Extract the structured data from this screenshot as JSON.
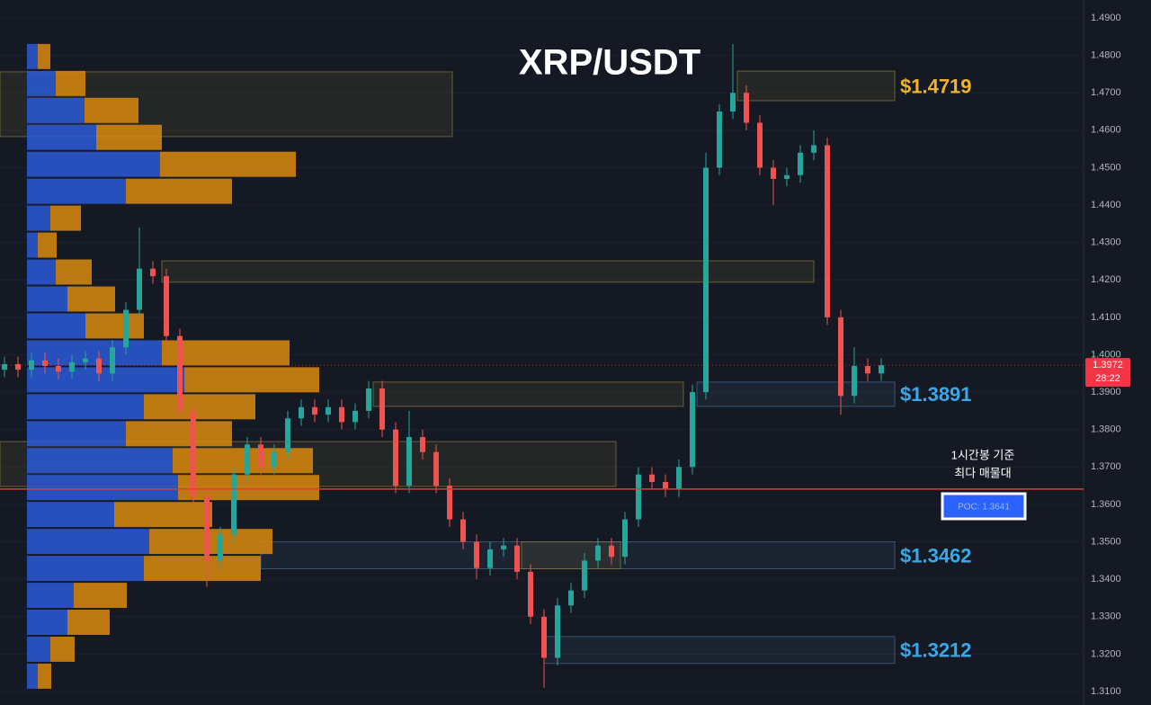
{
  "chart_data": {
    "type": "candlestick",
    "title": "XRP/USDT",
    "ylim": [
      1.31,
      1.49
    ],
    "yticks": [
      {
        "value": 1.31,
        "label": "1.3100"
      },
      {
        "value": 1.32,
        "label": "1.3200"
      },
      {
        "value": 1.33,
        "label": "1.3300"
      },
      {
        "value": 1.34,
        "label": "1.3400"
      },
      {
        "value": 1.35,
        "label": "1.3500"
      },
      {
        "value": 1.36,
        "label": "1.3600"
      },
      {
        "value": 1.37,
        "label": "1.3700"
      },
      {
        "value": 1.38,
        "label": "1.3800"
      },
      {
        "value": 1.39,
        "label": "1.3900"
      },
      {
        "value": 1.4,
        "label": "1.4000"
      },
      {
        "value": 1.41,
        "label": "1.4100"
      },
      {
        "value": 1.42,
        "label": "1.4200"
      },
      {
        "value": 1.43,
        "label": "1.4300"
      },
      {
        "value": 1.44,
        "label": "1.4400"
      },
      {
        "value": 1.45,
        "label": "1.4500"
      },
      {
        "value": 1.46,
        "label": "1.4600"
      },
      {
        "value": 1.47,
        "label": "1.4700"
      },
      {
        "value": 1.48,
        "label": "1.4800"
      },
      {
        "value": 1.49,
        "label": "1.4900"
      }
    ],
    "up_color": "#26a69a",
    "down_color": "#ef5350",
    "open": [
      1.396,
      1.3975,
      1.396,
      1.3985,
      1.397,
      1.3955,
      1.398,
      1.399,
      1.395,
      1.402,
      1.412,
      1.423,
      1.421,
      1.405,
      1.385,
      1.362,
      1.345,
      1.352,
      1.368,
      1.376,
      1.37,
      1.374,
      1.383,
      1.386,
      1.384,
      1.386,
      1.382,
      1.385,
      1.391,
      1.38,
      1.365,
      1.378,
      1.374,
      1.365,
      1.356,
      1.35,
      1.343,
      1.348,
      1.349,
      1.342,
      1.33,
      1.319,
      1.333,
      1.337,
      1.345,
      1.349,
      1.346,
      1.356,
      1.368,
      1.366,
      1.364,
      1.37,
      1.39,
      1.45,
      1.465,
      1.47,
      1.462,
      1.45,
      1.447,
      1.448,
      1.454,
      1.456,
      1.41,
      1.389,
      1.397,
      1.395
    ],
    "high": [
      1.3995,
      1.3995,
      1.4005,
      1.4005,
      1.399,
      1.4,
      1.401,
      1.401,
      1.404,
      1.414,
      1.434,
      1.425,
      1.423,
      1.407,
      1.387,
      1.364,
      1.354,
      1.37,
      1.378,
      1.378,
      1.376,
      1.385,
      1.388,
      1.388,
      1.388,
      1.388,
      1.387,
      1.393,
      1.393,
      1.382,
      1.385,
      1.38,
      1.376,
      1.367,
      1.358,
      1.352,
      1.35,
      1.351,
      1.351,
      1.344,
      1.332,
      1.335,
      1.339,
      1.347,
      1.351,
      1.351,
      1.358,
      1.37,
      1.37,
      1.368,
      1.372,
      1.392,
      1.454,
      1.467,
      1.483,
      1.472,
      1.464,
      1.452,
      1.45,
      1.456,
      1.46,
      1.458,
      1.412,
      1.402,
      1.399,
      1.399
    ],
    "low": [
      1.394,
      1.394,
      1.394,
      1.395,
      1.3935,
      1.3935,
      1.396,
      1.393,
      1.393,
      1.4,
      1.41,
      1.419,
      1.403,
      1.383,
      1.36,
      1.338,
      1.343,
      1.35,
      1.366,
      1.368,
      1.368,
      1.372,
      1.381,
      1.382,
      1.382,
      1.38,
      1.38,
      1.383,
      1.378,
      1.363,
      1.363,
      1.372,
      1.363,
      1.354,
      1.348,
      1.34,
      1.341,
      1.346,
      1.34,
      1.328,
      1.311,
      1.317,
      1.331,
      1.335,
      1.343,
      1.344,
      1.344,
      1.354,
      1.364,
      1.362,
      1.362,
      1.368,
      1.388,
      1.448,
      1.463,
      1.46,
      1.448,
      1.44,
      1.445,
      1.446,
      1.452,
      1.408,
      1.384,
      1.387,
      1.393,
      1.393
    ],
    "close": [
      1.3975,
      1.396,
      1.3985,
      1.397,
      1.3955,
      1.398,
      1.399,
      1.395,
      1.402,
      1.412,
      1.423,
      1.421,
      1.405,
      1.385,
      1.362,
      1.345,
      1.352,
      1.368,
      1.376,
      1.37,
      1.374,
      1.383,
      1.386,
      1.384,
      1.386,
      1.382,
      1.385,
      1.391,
      1.38,
      1.365,
      1.378,
      1.374,
      1.365,
      1.356,
      1.35,
      1.343,
      1.348,
      1.349,
      1.342,
      1.33,
      1.319,
      1.333,
      1.337,
      1.345,
      1.349,
      1.346,
      1.356,
      1.368,
      1.366,
      1.364,
      1.37,
      1.39,
      1.45,
      1.465,
      1.47,
      1.462,
      1.45,
      1.447,
      1.448,
      1.454,
      1.456,
      1.41,
      1.389,
      1.397,
      1.395,
      1.3972
    ],
    "volume_profile": {
      "buy_color": "#2a5bd7",
      "sell_color": "#d98a0e",
      "levels": [
        1.4797,
        1.4725,
        1.4653,
        1.4581,
        1.4509,
        1.4437,
        1.4365,
        1.4293,
        1.4221,
        1.4149,
        1.4077,
        1.4005,
        1.3933,
        1.3861,
        1.3789,
        1.3717,
        1.3645,
        1.3573,
        1.3501,
        1.3429,
        1.3357,
        1.3285,
        1.3213,
        1.3141
      ],
      "buy": [
        12,
        32,
        64,
        77,
        148,
        110,
        26,
        12,
        32,
        45,
        65,
        150,
        175,
        130,
        110,
        162,
        168,
        97,
        136,
        130,
        52,
        45,
        26,
        12
      ],
      "sell": [
        14,
        33,
        60,
        73,
        151,
        118,
        34,
        21,
        40,
        53,
        65,
        142,
        150,
        124,
        118,
        156,
        157,
        109,
        137,
        130,
        59,
        47,
        27,
        15
      ]
    },
    "zones": [
      {
        "low": 1.4583,
        "high": 1.4756,
        "color": "#8a7a3a"
      },
      {
        "low": 1.4679,
        "high": 1.4758,
        "color": "#8a7a3a",
        "label": "$1.4719",
        "label_color": "#f0b429"
      },
      {
        "low": 1.4194,
        "high": 1.4251,
        "color": "#8a7a3a"
      },
      {
        "low": 1.3862,
        "high": 1.3927,
        "color": "#8a7a3a"
      },
      {
        "low": 1.3862,
        "high": 1.3927,
        "color": "#4a6a8e",
        "label": "$1.3891",
        "label_color": "#3aa8e8"
      },
      {
        "low": 1.3648,
        "high": 1.3768,
        "color": "#8a7a3a"
      },
      {
        "low": 1.3428,
        "high": 1.35,
        "color": "#4a6a8e",
        "label": "$1.3462",
        "label_color": "#3aa8e8"
      },
      {
        "low": 1.3428,
        "high": 1.35,
        "color": "#8a7a3a"
      },
      {
        "low": 1.3175,
        "high": 1.3247,
        "color": "#4a6a8e",
        "label": "$1.3212",
        "label_color": "#3aa8e8"
      }
    ],
    "poc": {
      "value": 1.3641,
      "label": "POC: 1.3641",
      "color": "#e53935"
    },
    "annotation": [
      "1시간봉 기준",
      "최다 매물대"
    ],
    "last_price": 1.3972,
    "countdown": "28:22"
  }
}
